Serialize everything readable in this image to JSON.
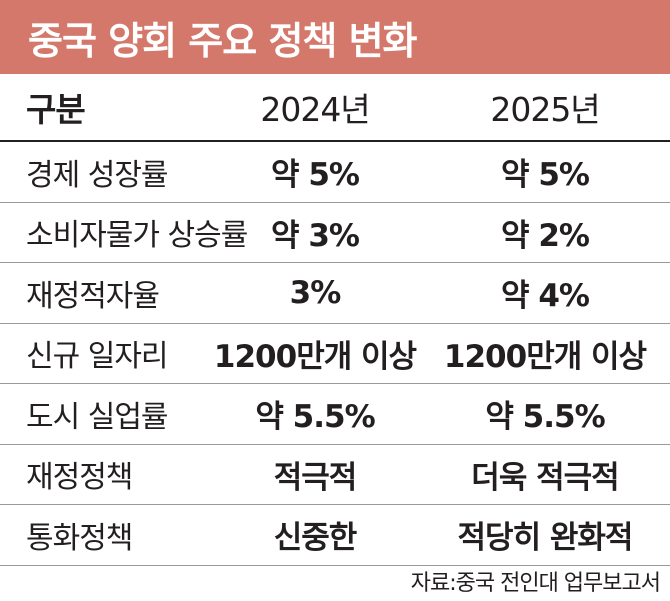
{
  "title": "중국 양회 주요 정책 변화",
  "headers": {
    "label": "구분",
    "y2024": "2024년",
    "y2025": "2025년"
  },
  "rows": [
    {
      "label": "경제 성장률",
      "y2024": "약 5%",
      "y2025": "약 5%"
    },
    {
      "label": "소비자물가 상승률",
      "y2024": "약 3%",
      "y2025": "약 2%"
    },
    {
      "label": "재정적자율",
      "y2024": "3%",
      "y2025": "약 4%"
    },
    {
      "label": "신규 일자리",
      "y2024": "1200만개 이상",
      "y2025": "1200만개 이상"
    },
    {
      "label": "도시 실업률",
      "y2024": "약 5.5%",
      "y2025": "약 5.5%"
    },
    {
      "label": "재정정책",
      "y2024": "적극적",
      "y2025": "더욱 적극적"
    },
    {
      "label": "통화정책",
      "y2024": "신중한",
      "y2025": "적당히 완화적"
    }
  ],
  "source": "자료:중국 전인대 업무보고서",
  "colors": {
    "title_bg": "#d4786b",
    "text": "#231f20",
    "divider": "#9a9a9a"
  }
}
